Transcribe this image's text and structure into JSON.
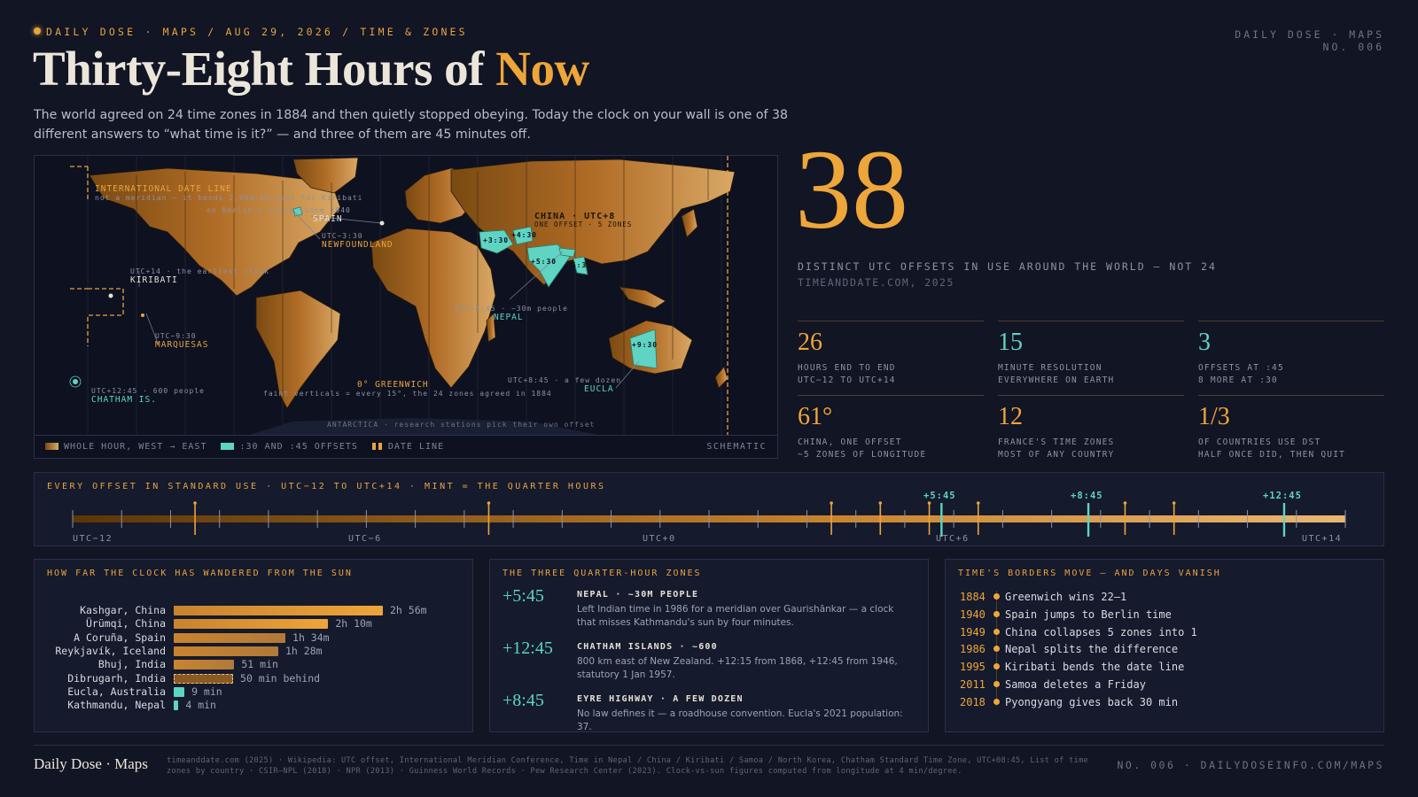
{
  "header": {
    "topline": "DAILY DOSE · MAPS / AUG 29, 2026 / TIME & ZONES",
    "topright_1": "DAILY DOSE · MAPS",
    "topright_2": "NO. 006",
    "title_main": "Thirty-Eight Hours of ",
    "title_accent": "Now",
    "subtitle": "The world agreed on 24 time zones in 1884 and then quietly stopped obeying. Today the clock on your wall is one of 38 different answers to “what time is it?” — and three of them are 45 minutes off."
  },
  "map": {
    "labels": {
      "idl_title": "INTERNATIONAL DATE LINE",
      "idl_sub": "not a meridian — it bends 2,000 km east for Kiribati",
      "berlin_note": "on Berlin's clock since 1940",
      "spain": "SPAIN",
      "nf_offset": "UTC−3:30",
      "newfoundland": "NEWFOUNDLAND",
      "kiribati_note": "UTC+14 · the earliest clock",
      "kiribati": "KIRIBATI",
      "marq_offset": "UTC−9:30",
      "marquesas": "MARQUESAS",
      "chatham_note": "UTC+12:45 · 600 people",
      "chatham": "CHATHAM IS.",
      "greenwich": "0° GREENWICH",
      "greenwich_note": "faint verticals = every 15°, the 24 zones agreed in 1884",
      "china": "CHINA · UTC+8",
      "china_sub": "ONE OFFSET · 5 ZONES",
      "nepal_note": "UTC+5:45 · ~30m people",
      "nepal": "NEPAL",
      "eucla_note": "UTC+8:45 · a few dozen",
      "eucla": "EUCLA",
      "antarctica": "ANTARCTICA · research stations pick their own offset",
      "z_iran": "+3:30",
      "z_afg": "+4:30",
      "z_india": "+5:30",
      "z_myan": "+6:30",
      "z_aus": "+9:30"
    },
    "legend": {
      "whole": "WHOLE HOUR, WEST → EAST",
      "partial": ":30 AND :45 OFFSETS",
      "dateline": "DATE LINE",
      "schematic": "SCHEMATIC"
    },
    "colors": {
      "land": "#b8752a",
      "partial": "#5fd4c3",
      "dateline": "#e9a340"
    }
  },
  "hero": {
    "number": "38",
    "label": "DISTINCT UTC OFFSETS IN USE AROUND THE WORLD — NOT 24",
    "source": "TIMEANDDATE.COM, 2025"
  },
  "stats": [
    {
      "value": "26",
      "l1": "HOURS END TO END",
      "l2": "UTC−12 TO UTC+14"
    },
    {
      "value": "15",
      "l1": "MINUTE RESOLUTION",
      "l2": "EVERYWHERE ON EARTH"
    },
    {
      "value": "3",
      "l1": "OFFSETS AT :45",
      "l2": "8 MORE AT :30"
    },
    {
      "value": "61°",
      "l1": "CHINA, ONE OFFSET",
      "l2": "~5 ZONES OF LONGITUDE"
    },
    {
      "value": "12",
      "l1": "FRANCE'S TIME ZONES",
      "l2": "MOST OF ANY COUNTRY"
    },
    {
      "value": "1/3",
      "l1": "OF COUNTRIES USE DST",
      "l2": "HALF ONCE DID, THEN QUIT"
    }
  ],
  "strip": {
    "title": "EVERY OFFSET IN STANDARD USE · UTC−12 TO UTC+14 · MINT = THE QUARTER HOURS",
    "axis": [
      "UTC−12",
      "UTC−6",
      "UTC+0",
      "UTC+6",
      "UTC+14"
    ],
    "q1": "+5:45",
    "q2": "+8:45",
    "q3": "+12:45",
    "range": [
      -12,
      14
    ],
    "whole_hours": [
      -12,
      -11,
      -10,
      -9,
      -8,
      -7,
      -6,
      -5,
      -4,
      -3,
      -2,
      -1,
      0,
      1,
      2,
      3,
      4,
      5,
      6,
      7,
      8,
      9,
      10,
      11,
      12,
      13,
      14
    ],
    "half_hours": [
      -9.5,
      -3.5,
      3.5,
      4.5,
      5.5,
      6.5,
      9.5,
      10.5
    ],
    "quarter_hours": [
      5.75,
      8.75,
      12.75
    ]
  },
  "wander": {
    "title": "HOW FAR THE CLOCK HAS WANDERED FROM THE SUN",
    "unit": "minutes",
    "rows": [
      {
        "name": "Kashgar, China",
        "minutes": 176,
        "label": "2h 56m",
        "style": "solid"
      },
      {
        "name": "Ürümqi, China",
        "minutes": 130,
        "label": "2h 10m",
        "style": "solid"
      },
      {
        "name": "A Coruña, Spain",
        "minutes": 94,
        "label": "1h 34m",
        "style": "solid"
      },
      {
        "name": "Reykjavík, Iceland",
        "minutes": 88,
        "label": "1h 28m",
        "style": "solid"
      },
      {
        "name": "Bhuj, India",
        "minutes": 51,
        "label": "51 min",
        "style": "solid"
      },
      {
        "name": "Dibrugarh, India",
        "minutes": 50,
        "label": "50 min behind",
        "style": "dashed"
      },
      {
        "name": "Eucla, Australia",
        "minutes": 9,
        "label": "9 min",
        "style": "mint"
      },
      {
        "name": "Kathmandu, Nepal",
        "minutes": 4,
        "label": "4 min",
        "style": "mint"
      }
    ]
  },
  "quarter": {
    "title": "THE THREE QUARTER-HOUR ZONES",
    "items": [
      {
        "offset": "+5:45",
        "head": "NEPAL · ~30M PEOPLE",
        "desc": "Left Indian time in 1986 for a meridian over Gaurishānkar — a clock that misses Kathmandu's sun by four minutes."
      },
      {
        "offset": "+12:45",
        "head": "CHATHAM ISLANDS · ~600",
        "desc": "800 km east of New Zealand. +12:15 from 1868, +12:45 from 1946, statutory 1 Jan 1957."
      },
      {
        "offset": "+8:45",
        "head": "EYRE HIGHWAY · A FEW DOZEN",
        "desc": "No law defines it — a roadhouse convention. Eucla's 2021 population: 37."
      }
    ]
  },
  "borders": {
    "title": "TIME'S BORDERS MOVE — AND DAYS VANISH",
    "events": [
      {
        "year": "1884",
        "text": "Greenwich wins 22–1"
      },
      {
        "year": "1940",
        "text": "Spain jumps to Berlin time"
      },
      {
        "year": "1949",
        "text": "China collapses 5 zones into 1"
      },
      {
        "year": "1986",
        "text": "Nepal splits the difference"
      },
      {
        "year": "1995",
        "text": "Kiribati bends the date line"
      },
      {
        "year": "2011",
        "text": "Samoa deletes a Friday"
      },
      {
        "year": "2018",
        "text": "Pyongyang gives back 30 min"
      }
    ]
  },
  "footer": {
    "brand": "Daily Dose · Maps",
    "sources": "timeanddate.com (2025) · Wikipedia: UTC offset, International Meridian Conference, Time in Nepal / China / Kiribati / Samoa / North Korea, Chatham Standard Time Zone, UTC+08:45, List of time zones by country · CSIR–NPL (2018) · NPR (2013) · Guinness World Records · Pew Research Center (2023). Clock-vs-sun figures computed from longitude at 4 min/degree.",
    "right": "NO. 006 · DAILYDOSEINFO.COM/MAPS"
  }
}
